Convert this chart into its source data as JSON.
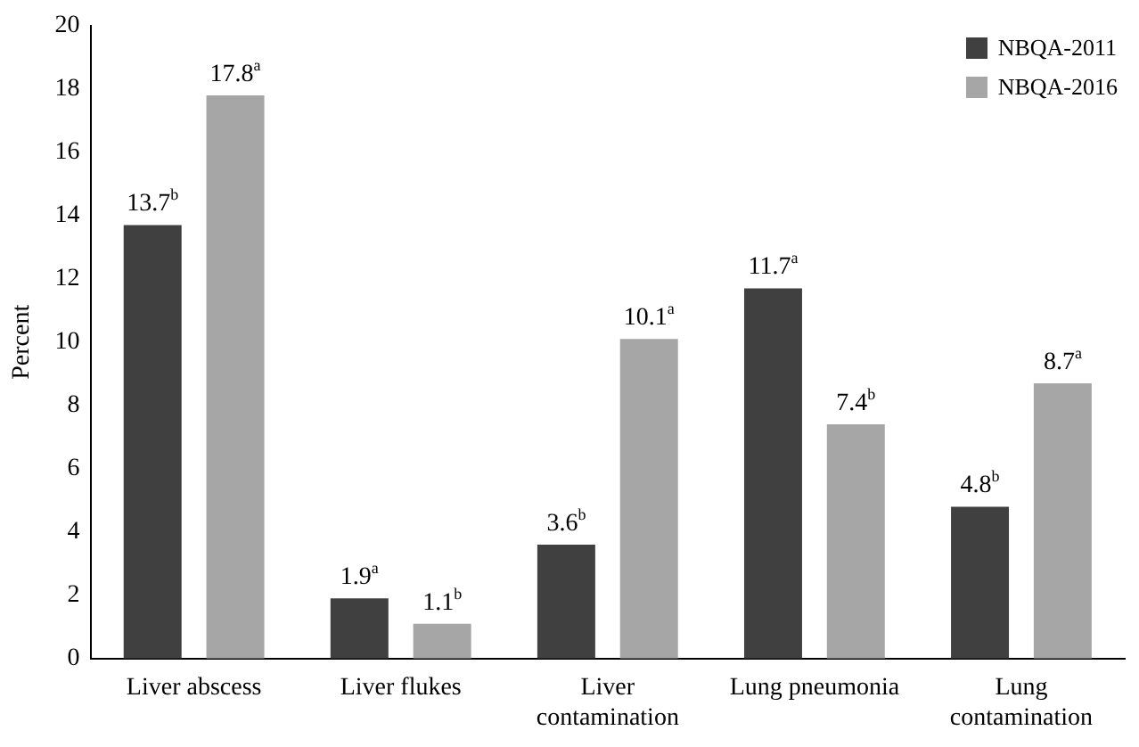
{
  "chart_data": {
    "type": "bar",
    "ylabel": "Percent",
    "categories": [
      "Liver abscess",
      "Liver flukes",
      "Liver contamination",
      "Lung pneumonia",
      "Lung contamination"
    ],
    "series": [
      {
        "name": "NBQA-2011",
        "color": "#404040",
        "values": [
          13.7,
          1.9,
          3.6,
          11.7,
          4.8
        ],
        "value_labels": [
          "13.7$^{b}$",
          "1.9$^{a}$",
          "3.6$^{b}$",
          "11.7$^{a}$",
          "4.8$^{b}$"
        ]
      },
      {
        "name": "NBQA-2016",
        "color": "#a6a6a6",
        "values": [
          17.8,
          1.1,
          10.1,
          7.4,
          8.7
        ],
        "value_labels": [
          "17.8$^{a}$",
          "1.1$^{b}$",
          "10.1$^{a}$",
          "7.4$^{b}$",
          "8.7$^{a}$"
        ]
      }
    ],
    "ylim": [
      0,
      20
    ],
    "yticks": [
      0,
      2,
      4,
      6,
      8,
      10,
      12,
      14,
      16,
      18,
      20
    ],
    "grid": false,
    "legend": "top right"
  }
}
